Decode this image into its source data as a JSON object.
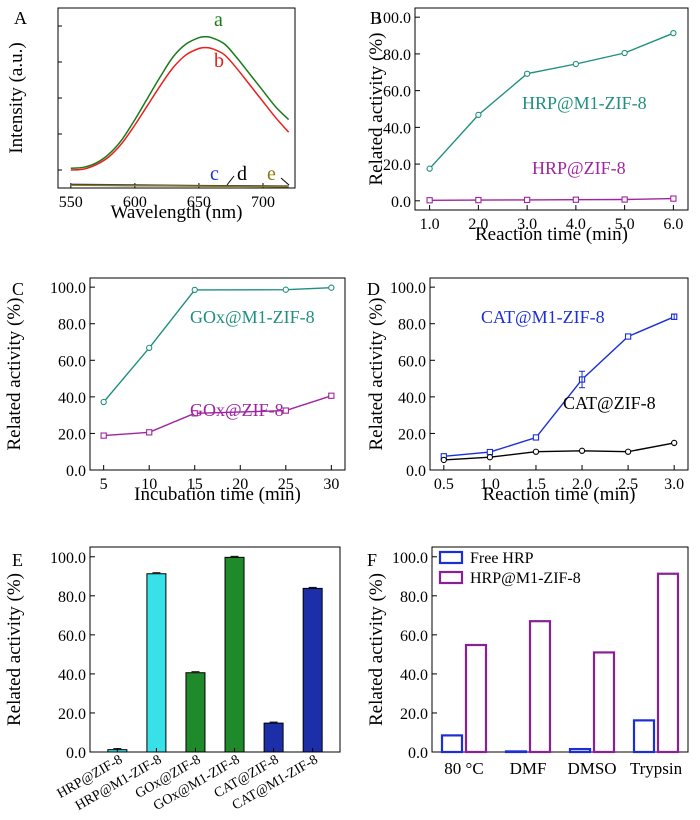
{
  "chart_data": [
    {
      "panel": "A",
      "type": "line",
      "xlabel": "Wavelength (nm)",
      "ylabel": "Intensity (a.u.)",
      "xlim": [
        540,
        725
      ],
      "ylim": [
        0,
        1.0
      ],
      "x_ticks": [
        "550",
        "600",
        "650",
        "700"
      ],
      "y_tick_labels_shown": false,
      "series": [
        {
          "name": "a",
          "color": "#1a7a1a",
          "x": [
            550,
            560,
            570,
            580,
            590,
            600,
            610,
            620,
            630,
            640,
            650,
            655,
            660,
            670,
            680,
            690,
            700,
            710,
            720
          ],
          "y": [
            0.11,
            0.115,
            0.14,
            0.19,
            0.27,
            0.38,
            0.5,
            0.62,
            0.73,
            0.8,
            0.835,
            0.84,
            0.835,
            0.8,
            0.72,
            0.63,
            0.54,
            0.45,
            0.38
          ]
        },
        {
          "name": "b",
          "color": "#e8201c",
          "x": [
            550,
            560,
            570,
            580,
            590,
            600,
            610,
            620,
            630,
            640,
            650,
            655,
            660,
            670,
            680,
            690,
            700,
            710,
            720
          ],
          "y": [
            0.1,
            0.105,
            0.13,
            0.175,
            0.25,
            0.35,
            0.46,
            0.57,
            0.67,
            0.74,
            0.775,
            0.78,
            0.775,
            0.74,
            0.66,
            0.57,
            0.48,
            0.39,
            0.31
          ]
        },
        {
          "name": "c",
          "color": "#1a2fd6",
          "x": [
            550,
            600,
            650,
            700,
            720
          ],
          "y": [
            0.02,
            0.016,
            0.013,
            0.011,
            0.01
          ]
        },
        {
          "name": "d",
          "color": "#000000",
          "x": [
            550,
            600,
            650,
            700,
            720
          ],
          "y": [
            0.018,
            0.014,
            0.012,
            0.01,
            0.009
          ]
        },
        {
          "name": "e",
          "color": "#8a7d10",
          "x": [
            550,
            600,
            650,
            700,
            720
          ],
          "y": [
            0.016,
            0.013,
            0.011,
            0.009,
            0.008
          ]
        }
      ]
    },
    {
      "panel": "B",
      "type": "line",
      "xlabel": "Reaction time (min)",
      "ylabel": "Related activity (%)",
      "xlim": [
        0.7,
        6.3
      ],
      "ylim": [
        -5,
        105
      ],
      "x_ticks": [
        "1.0",
        "2.0",
        "3.0",
        "4.0",
        "5.0",
        "6.0"
      ],
      "y_ticks": [
        "0.0",
        "20.0",
        "40.0",
        "60.0",
        "80.0",
        "100.0"
      ],
      "series": [
        {
          "name": "HRP@M1-ZIF-8",
          "color": "#1f8f7f",
          "x": [
            1,
            2,
            3,
            4,
            5,
            6
          ],
          "y": [
            17.5,
            46.8,
            69.2,
            74.5,
            80.5,
            91.3
          ]
        },
        {
          "name": "HRP@ZIF-8",
          "color": "#a024a0",
          "x": [
            1,
            2,
            3,
            4,
            5,
            6
          ],
          "y": [
            0.3,
            0.4,
            0.5,
            0.6,
            0.7,
            1.2
          ]
        }
      ]
    },
    {
      "panel": "C",
      "type": "line",
      "xlabel": "Incubation time (min)",
      "ylabel": "Related activity (%)",
      "xlim": [
        3.5,
        31.5
      ],
      "ylim": [
        0,
        105
      ],
      "x_ticks": [
        "5",
        "10",
        "15",
        "20",
        "25",
        "30"
      ],
      "y_ticks": [
        "0.0",
        "20.0",
        "40.0",
        "60.0",
        "80.0",
        "100.0"
      ],
      "series": [
        {
          "name": "GOx@M1-ZIF-8",
          "color": "#1f8f7f",
          "x": [
            5,
            10,
            15,
            25,
            30
          ],
          "y": [
            37.2,
            66.8,
            98.5,
            98.6,
            99.7
          ]
        },
        {
          "name": "GOx@ZIF-8",
          "color": "#a024a0",
          "x": [
            5,
            10,
            15,
            25,
            30
          ],
          "y": [
            18.8,
            20.6,
            31.0,
            32.5,
            40.6
          ]
        }
      ]
    },
    {
      "panel": "D",
      "type": "line",
      "xlabel": "Reaction time (min)",
      "ylabel": "Related activity (%)",
      "xlim": [
        0.35,
        3.15
      ],
      "ylim": [
        0,
        105
      ],
      "x_ticks": [
        "0.5",
        "1.0",
        "1.5",
        "2.0",
        "2.5",
        "3.0"
      ],
      "y_ticks": [
        "0.0",
        "20.0",
        "40.0",
        "60.0",
        "80.0",
        "100.0"
      ],
      "series": [
        {
          "name": "CAT@M1-ZIF-8",
          "color": "#1a2fd6",
          "x": [
            0.5,
            1.0,
            1.5,
            2.0,
            2.5,
            3.0
          ],
          "y": [
            7.5,
            9.8,
            17.8,
            49.5,
            73.0,
            83.8
          ]
        },
        {
          "name": "CAT@ZIF-8",
          "color": "#000000",
          "x": [
            0.5,
            1.0,
            1.5,
            2.0,
            2.5,
            3.0
          ],
          "y": [
            5.5,
            7.0,
            10.0,
            10.5,
            10.0,
            14.8
          ]
        }
      ]
    },
    {
      "panel": "E",
      "type": "bar",
      "ylabel": "Related activity (%)",
      "ylim": [
        0,
        105
      ],
      "y_ticks": [
        "0.0",
        "20.0",
        "40.0",
        "60.0",
        "80.0",
        "100.0"
      ],
      "categories": [
        "HRP@ZIF-8",
        "HRP@M1-ZIF-8",
        "GOx@ZIF-8",
        "GOx@M1-ZIF-8",
        "CAT@ZIF-8",
        "CAT@M1-ZIF-8"
      ],
      "values": [
        1.2,
        91.3,
        40.6,
        99.7,
        14.8,
        83.8
      ],
      "colors": [
        "#38e0e8",
        "#38e0e8",
        "#1f8a2a",
        "#1f8a2a",
        "#1c2fa8",
        "#1c2fa8"
      ]
    },
    {
      "panel": "F",
      "type": "bar",
      "ylabel": "Related activity (%)",
      "ylim": [
        0,
        105
      ],
      "y_ticks": [
        "0.0",
        "20.0",
        "40.0",
        "60.0",
        "80.0",
        "100.0"
      ],
      "categories": [
        "80 °C",
        "DMF",
        "DMSO",
        "Trypsin"
      ],
      "legend_position": "top-left",
      "series": [
        {
          "name": "Free HRP",
          "color": "#1a2fd6",
          "values": [
            8.5,
            0.3,
            1.5,
            16.2
          ]
        },
        {
          "name": "HRP@M1-ZIF-8",
          "color": "#8a1f9a",
          "values": [
            54.8,
            67.0,
            51.0,
            91.3
          ]
        }
      ]
    }
  ]
}
